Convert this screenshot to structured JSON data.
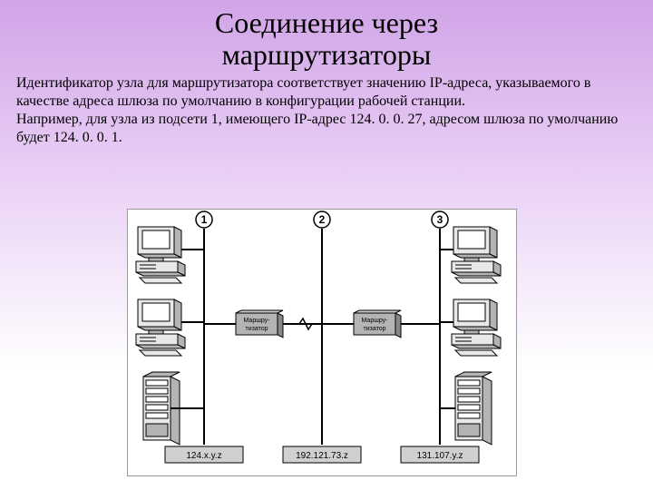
{
  "title_line1": "Соединение через",
  "title_line2": "маршрутизаторы",
  "paragraph1": "Идентификатор узла для маршрутизатора соответствует значению IP-адреса, указываемого в качестве адреса шлюза по умолчанию в конфигурации рабочей станции.",
  "paragraph2": "Например, для узла из подсети 1, имеющего IP-адрес 124. 0. 0. 27, адресом шлюза по умолчанию будет 124. 0. 0. 1.",
  "diagram": {
    "background": "#ffffff",
    "stroke": "#000000",
    "fill_light": "#e8e8e8",
    "fill_dark": "#b4b4b4",
    "font": "Arial, sans-serif",
    "net_numbers": [
      "1",
      "2",
      "3"
    ],
    "router_label1": "Маршру-",
    "router_label2": "тизатор",
    "subnet_ips": [
      "124.x.y.z",
      "192.121.73.z",
      "131.107.y.z"
    ],
    "subnet_box_fill": "#d0d0d0",
    "subnet_font_size": 10,
    "number_font_size": 12,
    "router_font_size": 7
  }
}
